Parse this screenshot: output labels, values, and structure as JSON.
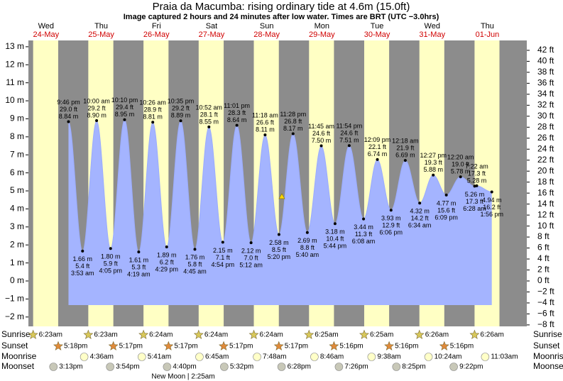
{
  "chart_data": {
    "type": "tide",
    "title": "Praia da Macumba: rising  ordinary tide at 4.6m (15.0ft)",
    "subtitle": "Image captured 2 hours and 24 minutes after low water. Times are BRT (UTC −3.0hrs)",
    "ylim": [
      -2.52,
      13.35
    ],
    "yticks": [
      {
        "value": -2,
        "label": "−2 m"
      },
      {
        "value": -1,
        "label": "−1 m"
      },
      {
        "value": 0,
        "label": "0 m"
      },
      {
        "value": 1,
        "label": "1 m"
      },
      {
        "value": 2,
        "label": "2 m"
      },
      {
        "value": 3,
        "label": "3 m"
      },
      {
        "value": 4,
        "label": "4 m"
      },
      {
        "value": 5,
        "label": "5 m"
      },
      {
        "value": 6,
        "label": "6 m"
      },
      {
        "value": 7,
        "label": "7 m"
      },
      {
        "value": 8,
        "label": "8 m"
      },
      {
        "value": 9,
        "label": "9 m"
      },
      {
        "value": 10,
        "label": "10 m"
      },
      {
        "value": 11,
        "label": "11 m"
      },
      {
        "value": 12,
        "label": "12 m"
      },
      {
        "value": 13,
        "label": "13 m"
      }
    ],
    "y2lim": [
      -8.27,
      43.8
    ],
    "y2ticks": [
      {
        "value": -8,
        "label": "−8 ft"
      },
      {
        "value": -6,
        "label": "−6 ft"
      },
      {
        "value": -4,
        "label": "−4 ft"
      },
      {
        "value": -2,
        "label": "−2 ft"
      },
      {
        "value": 0,
        "label": "0 ft"
      },
      {
        "value": 2,
        "label": "2 ft"
      },
      {
        "value": 4,
        "label": "4 ft"
      },
      {
        "value": 6,
        "label": "6 ft"
      },
      {
        "value": 8,
        "label": "8 ft"
      },
      {
        "value": 10,
        "label": "10 ft"
      },
      {
        "value": 12,
        "label": "12 ft"
      },
      {
        "value": 14,
        "label": "14 ft"
      },
      {
        "value": 16,
        "label": "16 ft"
      },
      {
        "value": 18,
        "label": "18 ft"
      },
      {
        "value": 20,
        "label": "20 ft"
      },
      {
        "value": 22,
        "label": "22 ft"
      },
      {
        "value": 24,
        "label": "24 ft"
      },
      {
        "value": 26,
        "label": "26 ft"
      },
      {
        "value": 28,
        "label": "28 ft"
      },
      {
        "value": 30,
        "label": "30 ft"
      },
      {
        "value": 32,
        "label": "32 ft"
      },
      {
        "value": 34,
        "label": "34 ft"
      },
      {
        "value": 36,
        "label": "36 ft"
      },
      {
        "value": 38,
        "label": "38 ft"
      },
      {
        "value": 40,
        "label": "40 ft"
      },
      {
        "value": 42,
        "label": "42 ft"
      }
    ],
    "row_labels": {
      "sunrise": "Sunrise",
      "sunset": "Sunset",
      "moonrise": "Moonrise",
      "moonset": "Moonset"
    },
    "new_moon": "New Moon | 2:25am",
    "days": [
      {
        "day": "Wed",
        "date": "24-May",
        "sunrise": "6:23am",
        "sunset": "5:18pm",
        "moonrise": null,
        "moonset": "3:13pm",
        "extrema": [
          {
            "time": "9:46 pm",
            "height": 8.84,
            "height_label": "8.84 m",
            "feet_label": "29.0 ft"
          }
        ]
      },
      {
        "day": "Thu",
        "date": "25-May",
        "sunrise": "6:23am",
        "sunset": "5:17pm",
        "moonrise": "4:36am",
        "moonset": "3:54pm",
        "extrema": [
          {
            "time": "3:53 am",
            "height": 1.66,
            "height_label": "1.66 m",
            "feet_label": "5.4 ft"
          },
          {
            "time": "10:00 am",
            "height": 8.9,
            "height_label": "8.90 m",
            "feet_label": "29.2 ft"
          },
          {
            "time": "4:05 pm",
            "height": 1.8,
            "height_label": "1.80 m",
            "feet_label": "5.9 ft"
          },
          {
            "time": "10:10 pm",
            "height": 8.95,
            "height_label": "8.95 m",
            "feet_label": "29.4 ft"
          }
        ]
      },
      {
        "day": "Fri",
        "date": "26-May",
        "sunrise": "6:24am",
        "sunset": "5:17pm",
        "moonrise": "5:41am",
        "moonset": "4:40pm",
        "extrema": [
          {
            "time": "4:19 am",
            "height": 1.61,
            "height_label": "1.61 m",
            "feet_label": "5.3 ft"
          },
          {
            "time": "10:26 am",
            "height": 8.81,
            "height_label": "8.81 m",
            "feet_label": "28.9 ft"
          },
          {
            "time": "4:29 pm",
            "height": 1.89,
            "height_label": "1.89 m",
            "feet_label": "6.2 ft"
          },
          {
            "time": "10:35 pm",
            "height": 8.89,
            "height_label": "8.89 m",
            "feet_label": "29.2 ft"
          }
        ]
      },
      {
        "day": "Sat",
        "date": "27-May",
        "sunrise": "6:24am",
        "sunset": "5:17pm",
        "moonrise": "6:45am",
        "moonset": "5:32pm",
        "extrema": [
          {
            "time": "4:45 am",
            "height": 1.76,
            "height_label": "1.76 m",
            "feet_label": "5.8 ft"
          },
          {
            "time": "10:52 am",
            "height": 8.55,
            "height_label": "8.55 m",
            "feet_label": "28.1 ft"
          },
          {
            "time": "4:54 pm",
            "height": 2.15,
            "height_label": "2.15 m",
            "feet_label": "7.1 ft"
          },
          {
            "time": "11:01 pm",
            "height": 8.64,
            "height_label": "8.64 m",
            "feet_label": "28.3 ft"
          }
        ]
      },
      {
        "day": "Sun",
        "date": "28-May",
        "sunrise": "6:24am",
        "sunset": "5:17pm",
        "moonrise": "7:48am",
        "moonset": "6:28pm",
        "extrema": [
          {
            "time": "5:12 am",
            "height": 2.12,
            "height_label": "2.12 m",
            "feet_label": "7.0 ft"
          },
          {
            "time": "11:18 am",
            "height": 8.11,
            "height_label": "8.11 m",
            "feet_label": "26.6 ft"
          },
          {
            "time": "5:20 pm",
            "height": 2.58,
            "height_label": "2.58 m",
            "feet_label": "8.5 ft"
          },
          {
            "time": "11:28 pm",
            "height": 8.17,
            "height_label": "8.17 m",
            "feet_label": "26.8 ft"
          }
        ]
      },
      {
        "day": "Mon",
        "date": "29-May",
        "sunrise": "6:25am",
        "sunset": "5:16pm",
        "moonrise": "8:46am",
        "moonset": "7:26pm",
        "extrema": [
          {
            "time": "5:40 am",
            "height": 2.69,
            "height_label": "2.69 m",
            "feet_label": "8.8 ft"
          },
          {
            "time": "11:45 am",
            "height": 7.5,
            "height_label": "7.50 m",
            "feet_label": "24.6 ft"
          },
          {
            "time": "5:44 pm",
            "height": 3.18,
            "height_label": "3.18 m",
            "feet_label": "10.4 ft"
          },
          {
            "time": "11:54 pm",
            "height": 7.51,
            "height_label": "7.51 m",
            "feet_label": "24.6 ft"
          }
        ]
      },
      {
        "day": "Tue",
        "date": "30-May",
        "sunrise": "6:25am",
        "sunset": "5:16pm",
        "moonrise": "9:38am",
        "moonset": "8:25pm",
        "extrema": [
          {
            "time": "6:08 am",
            "height": 3.44,
            "height_label": "3.44 m",
            "feet_label": "11.3 ft"
          },
          {
            "time": "12:09 pm",
            "height": 6.74,
            "height_label": "6.74 m",
            "feet_label": "22.1 ft"
          },
          {
            "time": "6:06 pm",
            "height": 3.93,
            "height_label": "3.93 m",
            "feet_label": "12.9 ft"
          }
        ]
      },
      {
        "day": "Wed",
        "date": "31-May",
        "sunrise": "6:26am",
        "sunset": "5:16pm",
        "moonrise": "10:24am",
        "moonset": "9:22pm",
        "extrema": [
          {
            "time": "12:18 am",
            "height": 6.69,
            "height_label": "6.69 m",
            "feet_label": "21.9 ft"
          },
          {
            "time": "6:34 am",
            "height": 4.32,
            "height_label": "4.32 m",
            "feet_label": "14.2 ft"
          },
          {
            "time": "12:27 pm",
            "height": 5.88,
            "height_label": "5.88 m",
            "feet_label": "19.3 ft"
          },
          {
            "time": "6:09 pm",
            "height": 4.77,
            "height_label": "4.77 m",
            "feet_label": "15.6 ft"
          }
        ]
      },
      {
        "day": "Thu",
        "date": "01-Jun",
        "sunrise": "6:26am",
        "sunset": null,
        "moonrise": "11:03am",
        "moonset": null,
        "extrema": [
          {
            "time": "12:20 am",
            "height": 5.78,
            "height_label": "5.78 m",
            "feet_label": "19.0 ft"
          },
          {
            "time": "6:28 am",
            "height": 5.26,
            "height_label": "5.26 m",
            "feet_label": "17.3 ft"
          },
          {
            "time": "7:22 am",
            "height": 5.28,
            "height_label": "5.28 m",
            "feet_label": "17.3 ft"
          },
          {
            "time": "1:56 pm",
            "height": 4.94,
            "height_label": "4.94 m",
            "feet_label": "16.2 ft"
          }
        ]
      }
    ]
  }
}
